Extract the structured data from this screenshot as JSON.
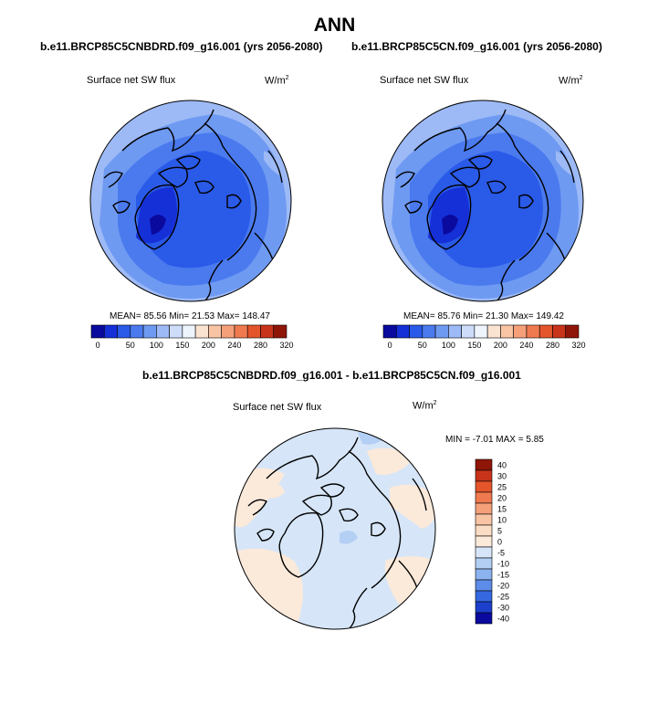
{
  "title": "ANN",
  "panels": [
    {
      "title": "b.e11.BRCP85C5CNBDRD.f09_g16.001 (yrs 2056-2080)",
      "variable": "Surface net SW flux",
      "units": "W/m",
      "units_exp": "2",
      "stats": "MEAN=  85.56  Min=  21.53  Max= 148.47"
    },
    {
      "title": "b.e11.BRCP85C5CN.f09_g16.001 (yrs 2056-2080)",
      "variable": "Surface net SW flux",
      "units": "W/m",
      "units_exp": "2",
      "stats": "MEAN=  85.76  Min=  21.30  Max= 149.42"
    },
    {
      "title": "b.e11.BRCP85C5CNBDRD.f09_g16.001 - b.e11.BRCP85C5CN.f09_g16.001",
      "variable": "Surface net SW flux",
      "units": "W/m",
      "units_exp": "2",
      "stats": "MIN =  -7.01 MAX =   5.85"
    }
  ],
  "chart_data": [
    {
      "type": "heatmap",
      "projection": "north polar stereographic",
      "title": "b.e11.BRCP85C5CNBDRD.f09_g16.001 (yrs 2056-2080)",
      "variable": "Surface net SW flux",
      "units": "W/m2",
      "mean": 85.56,
      "min": 21.53,
      "max": 148.47,
      "colorbar_ticks": [
        "0",
        "50",
        "100",
        "150",
        "200",
        "240",
        "280",
        "320"
      ],
      "colorbar_colors": [
        "#0a0a9e",
        "#1630d8",
        "#2a5ae8",
        "#4a7aee",
        "#6f9af2",
        "#9dbaf6",
        "#cddcf9",
        "#eef4fc",
        "#fbe3d2",
        "#f8c4a4",
        "#f6a07a",
        "#f07a50",
        "#e4552c",
        "#c8341a",
        "#8e1508"
      ],
      "colorbar_orientation": "horizontal"
    },
    {
      "type": "heatmap",
      "projection": "north polar stereographic",
      "title": "b.e11.BRCP85C5CN.f09_g16.001 (yrs 2056-2080)",
      "variable": "Surface net SW flux",
      "units": "W/m2",
      "mean": 85.76,
      "min": 21.3,
      "max": 149.42,
      "colorbar_ticks": [
        "0",
        "50",
        "100",
        "150",
        "200",
        "240",
        "280",
        "320"
      ],
      "colorbar_colors": [
        "#0a0a9e",
        "#1630d8",
        "#2a5ae8",
        "#4a7aee",
        "#6f9af2",
        "#9dbaf6",
        "#cddcf9",
        "#eef4fc",
        "#fbe3d2",
        "#f8c4a4",
        "#f6a07a",
        "#f07a50",
        "#e4552c",
        "#c8341a",
        "#8e1508"
      ],
      "colorbar_orientation": "horizontal"
    },
    {
      "type": "heatmap",
      "projection": "north polar stereographic",
      "title": "b.e11.BRCP85C5CNBDRD.f09_g16.001 - b.e11.BRCP85C5CN.f09_g16.001",
      "variable": "Surface net SW flux",
      "units": "W/m2",
      "min": -7.01,
      "max": 5.85,
      "colorbar_ticks": [
        "40",
        "30",
        "25",
        "20",
        "15",
        "10",
        "5",
        "0",
        "-5",
        "-10",
        "-15",
        "-20",
        "-25",
        "-30",
        "-40"
      ],
      "colorbar_colors": [
        "#8e1508",
        "#c8341a",
        "#e4552c",
        "#f07a50",
        "#f6a07a",
        "#f8c4a4",
        "#fbdcc4",
        "#fbe9da",
        "#d6e6f8",
        "#b4cff4",
        "#8cb2ef",
        "#5d8de8",
        "#3568e0",
        "#1c40cc",
        "#0a0a9e"
      ],
      "colorbar_orientation": "vertical"
    }
  ],
  "colors": {
    "ocean_deep": "#2a5ae8",
    "ocean_mid": "#4a7aee",
    "ocean_light": "#6f9af2",
    "ocean_pale": "#9dbaf6",
    "ice_dark": "#1630d8",
    "ice_darkest": "#0a0a9e",
    "diff_base": "#d6e6f8",
    "diff_warm": "#fbe9da",
    "diff_cool": "#b4cff4",
    "coast": "#000000"
  }
}
